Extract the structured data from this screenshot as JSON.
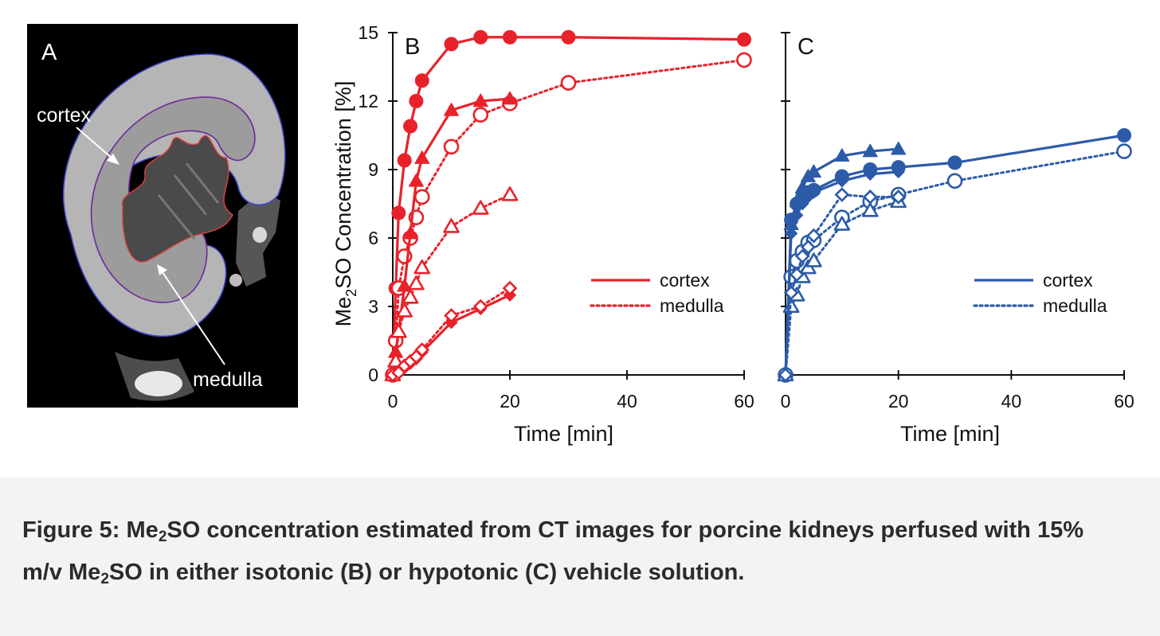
{
  "figure": {
    "panel_a": {
      "letter": "A",
      "label_cortex": "cortex",
      "label_medulla": "medulla"
    },
    "caption": {
      "prefix": "Figure 5: Me",
      "sub1": "2",
      "part2": "SO concentration estimated from CT images for porcine kidneys perfused with 15% m/v Me",
      "sub2": "2",
      "part3": "SO in either isotonic (B) or hypotonic (C) vehicle solution."
    }
  },
  "colors": {
    "panel_b": "#e8222a",
    "panel_c": "#2c5ba8",
    "axis": "#111111"
  },
  "chart_data": [
    {
      "panel": "B",
      "type": "line",
      "xlabel": "Time [min]",
      "ylabel_main": "Me",
      "ylabel_sub": "2",
      "ylabel_rest": "SO Concentration [%]",
      "xlim": [
        0,
        60
      ],
      "ylim": [
        0,
        15
      ],
      "xticks": [
        0,
        20,
        40,
        60
      ],
      "yticks": [
        0,
        3,
        6,
        9,
        12,
        15
      ],
      "legend": {
        "position": "center-right",
        "entries": [
          {
            "label": "cortex",
            "style": "solid"
          },
          {
            "label": "medulla",
            "style": "dotted"
          }
        ]
      },
      "series": [
        {
          "tissue": "cortex",
          "marker": "circle",
          "filled": true,
          "style": "solid",
          "x": [
            0,
            0.5,
            1,
            2,
            3,
            4,
            5,
            10,
            15,
            20,
            30,
            60
          ],
          "y": [
            0,
            3.8,
            7.1,
            9.4,
            10.9,
            12.0,
            12.9,
            14.5,
            14.8,
            14.8,
            14.8,
            14.7
          ]
        },
        {
          "tissue": "medulla",
          "marker": "circle",
          "filled": false,
          "style": "dotted",
          "x": [
            0,
            0.5,
            1,
            2,
            3,
            4,
            5,
            10,
            15,
            20,
            30,
            60
          ],
          "y": [
            0,
            1.5,
            3.8,
            5.2,
            6.0,
            6.9,
            7.8,
            10.0,
            11.4,
            11.9,
            12.8,
            13.8
          ]
        },
        {
          "tissue": "cortex",
          "marker": "triangle",
          "filled": true,
          "style": "solid",
          "x": [
            0,
            0.5,
            1,
            2,
            3,
            4,
            5,
            10,
            15,
            20
          ],
          "y": [
            0,
            1.0,
            1.9,
            3.9,
            6.2,
            8.5,
            9.5,
            11.6,
            12.0,
            12.1
          ]
        },
        {
          "tissue": "medulla",
          "marker": "triangle",
          "filled": false,
          "style": "dotted",
          "x": [
            0,
            0.5,
            1,
            2,
            3,
            4,
            5,
            10,
            15,
            20
          ],
          "y": [
            0,
            0.6,
            1.9,
            2.8,
            3.4,
            4.0,
            4.7,
            6.5,
            7.3,
            7.9
          ]
        },
        {
          "tissue": "cortex",
          "marker": "diamond",
          "filled": true,
          "style": "solid",
          "x": [
            0,
            1,
            2,
            3,
            4,
            5,
            10,
            15,
            20
          ],
          "y": [
            0,
            0.1,
            0.3,
            0.5,
            0.7,
            1.0,
            2.3,
            2.9,
            3.5
          ]
        },
        {
          "tissue": "medulla",
          "marker": "diamond",
          "filled": false,
          "style": "dotted",
          "x": [
            0,
            1,
            2,
            3,
            4,
            5,
            10,
            15,
            20
          ],
          "y": [
            0,
            0.1,
            0.4,
            0.6,
            0.8,
            1.1,
            2.6,
            3.0,
            3.8
          ]
        }
      ]
    },
    {
      "panel": "C",
      "type": "line",
      "xlabel": "Time [min]",
      "xlim": [
        0,
        60
      ],
      "ylim": [
        0,
        15
      ],
      "xticks": [
        0,
        20,
        40,
        60
      ],
      "yticks": [
        0,
        3,
        6,
        9,
        12,
        15
      ],
      "legend": {
        "position": "center-right",
        "entries": [
          {
            "label": "cortex",
            "style": "solid"
          },
          {
            "label": "medulla",
            "style": "dotted"
          }
        ]
      },
      "series": [
        {
          "tissue": "cortex",
          "marker": "circle",
          "filled": true,
          "style": "solid",
          "x": [
            0,
            1,
            2,
            3,
            4,
            5,
            10,
            15,
            20,
            30,
            60
          ],
          "y": [
            0,
            6.8,
            7.5,
            7.8,
            8.0,
            8.1,
            8.7,
            9.0,
            9.1,
            9.3,
            10.5
          ]
        },
        {
          "tissue": "medulla",
          "marker": "circle",
          "filled": false,
          "style": "dotted",
          "x": [
            0,
            1,
            2,
            3,
            4,
            5,
            10,
            15,
            20,
            30,
            60
          ],
          "y": [
            0,
            4.3,
            5.0,
            5.4,
            5.8,
            5.9,
            6.9,
            7.6,
            7.9,
            8.5,
            9.8
          ]
        },
        {
          "tissue": "cortex",
          "marker": "triangle",
          "filled": true,
          "style": "solid",
          "x": [
            0,
            1,
            2,
            3,
            4,
            5,
            10,
            15,
            20
          ],
          "y": [
            0,
            6.6,
            7.6,
            8.2,
            8.7,
            8.9,
            9.6,
            9.8,
            9.9
          ]
        },
        {
          "tissue": "medulla",
          "marker": "triangle",
          "filled": false,
          "style": "dotted",
          "x": [
            0,
            1,
            2,
            3,
            4,
            5,
            10,
            15,
            20
          ],
          "y": [
            0,
            3.0,
            3.5,
            4.3,
            4.7,
            5.0,
            6.6,
            7.2,
            7.6
          ]
        },
        {
          "tissue": "cortex",
          "marker": "diamond",
          "filled": true,
          "style": "solid",
          "x": [
            0,
            1,
            2,
            3,
            4,
            5,
            10,
            15,
            20
          ],
          "y": [
            0,
            6.2,
            7.0,
            7.5,
            7.8,
            8.0,
            8.5,
            8.8,
            8.9
          ]
        },
        {
          "tissue": "medulla",
          "marker": "diamond",
          "filled": false,
          "style": "dotted",
          "x": [
            0,
            1,
            2,
            3,
            4,
            5,
            10,
            15,
            20
          ],
          "y": [
            0,
            3.6,
            4.4,
            5.2,
            5.6,
            6.1,
            7.9,
            7.8,
            7.8
          ]
        }
      ]
    }
  ]
}
